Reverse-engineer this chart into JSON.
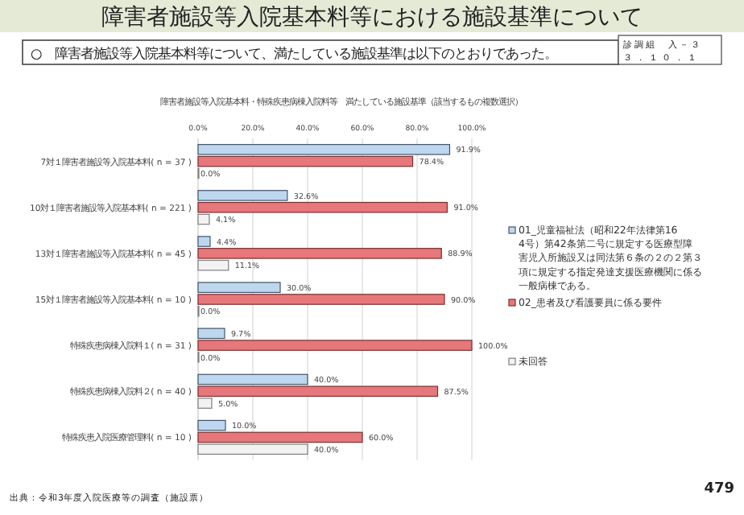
{
  "chart_data": {
    "type": "bar",
    "orientation": "horizontal",
    "title": "障害者施設等入院基本料等における施設基準について",
    "subtitle": "○　障害者施設等入院基本料等について、満たしている施設基準は以下のとおりであった。",
    "annotations": [
      "障害者施設等入院基本料・特殊疾患病棟入院料等　満たしている施設基準（該当するもの複数選択）",
      "診調組　入－３",
      "３．１０．１",
      "出典：令和3年度入院医療等の調査（施設票）",
      "479"
    ],
    "categories": [
      "7対１障害者施設等入院基本料( n = 37 )",
      "10対１障害者施設等入院基本料( n = 221 )",
      "13対１障害者施設等入院基本料( n = 45 )",
      "15対１障害者施設等入院基本料( n = 10 )",
      "特殊疾患病棟入院料１( n = 31 )",
      "特殊疾患病棟入院料２( n = 40 )",
      "特殊疾患入院医療管理料( n = 10 )"
    ],
    "series": [
      {
        "name": "01_児童福祉法（昭和22年法律第164号）第42条第二号に規定する医療型障害児入所施設又は同法第６条の２の２第３項に規定する指定発達支援医療機関に係る一般病棟である。",
        "color": "#bdd7ee",
        "values": [
          91.9,
          32.6,
          4.4,
          30.0,
          9.7,
          40.0,
          10.0
        ],
        "value_labels": [
          "91.9%",
          "32.6%",
          "4.4%",
          "30.0%",
          "9.7%",
          "40.0%",
          "10.0%"
        ]
      },
      {
        "name": "02_患者及び看護要員に係る要件",
        "color": "#e6777b",
        "values": [
          78.4,
          91.0,
          88.9,
          90.0,
          100.0,
          87.5,
          60.0
        ],
        "value_labels": [
          "78.4%",
          "91.0%",
          "88.9%",
          "90.0%",
          "100.0%",
          "87.5%",
          "60.0%"
        ]
      },
      {
        "name": "未回答",
        "color": "#f2f2f2",
        "values": [
          0.0,
          4.1,
          11.1,
          0.0,
          0.0,
          5.0,
          40.0
        ],
        "value_labels": [
          "0.0%",
          "4.1%",
          "11.1%",
          "0.0%",
          "0.0%",
          "5.0%",
          "40.0%"
        ]
      }
    ],
    "xlim": [
      0,
      100
    ],
    "xticks": [
      {
        "value": 0,
        "label": "0.0%"
      },
      {
        "value": 20,
        "label": "20.0%"
      },
      {
        "value": 40,
        "label": "40.0%"
      },
      {
        "value": 60,
        "label": "60.0%"
      },
      {
        "value": 80,
        "label": "80.0%"
      },
      {
        "value": 100,
        "label": "100.0%"
      }
    ],
    "grid": "x",
    "legend": "right"
  }
}
